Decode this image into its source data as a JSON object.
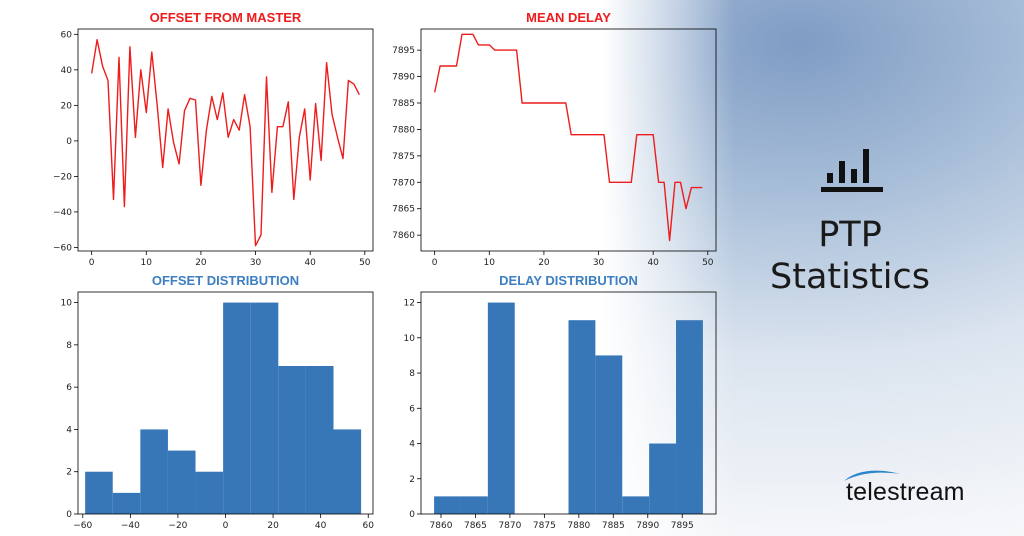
{
  "side_panel": {
    "icon": "bar-chart-icon",
    "title_line1": "PTP",
    "title_line2": "Statistics",
    "logo_text": "telestream"
  },
  "colors": {
    "line": "#ee1c1c",
    "bar": "#3777b7",
    "title_red": "#ee1c1c",
    "title_blue": "#3d7fc0"
  },
  "chart_data": [
    {
      "type": "line",
      "title": "OFFSET FROM MASTER",
      "xlim": [
        -2.5,
        51.5
      ],
      "ylim": [
        -62,
        63
      ],
      "xticks": [
        0,
        10,
        20,
        30,
        40,
        50
      ],
      "yticks": [
        -60,
        -40,
        -20,
        0,
        20,
        40,
        60
      ],
      "x": [
        0,
        1,
        2,
        3,
        4,
        5,
        6,
        7,
        8,
        9,
        10,
        11,
        12,
        13,
        14,
        15,
        16,
        17,
        18,
        19,
        20,
        21,
        22,
        23,
        24,
        25,
        26,
        27,
        28,
        29,
        30,
        31,
        32,
        33,
        34,
        35,
        36,
        37,
        38,
        39,
        40,
        41,
        42,
        43,
        44,
        45,
        46,
        47,
        48,
        49
      ],
      "y": [
        38,
        57,
        42,
        34,
        -33,
        47,
        -37,
        53,
        2,
        40,
        16,
        50,
        20,
        -15,
        18,
        -1,
        -13,
        17,
        24,
        23,
        -25,
        6,
        25,
        12,
        27,
        2,
        12,
        6,
        26,
        8,
        -59,
        -53,
        36,
        -29,
        8,
        8,
        22,
        -33,
        2,
        18,
        -22,
        21,
        -11,
        44,
        15,
        2,
        -10,
        34,
        32,
        26
      ]
    },
    {
      "type": "line",
      "title": "MEAN DELAY",
      "xlim": [
        -2.5,
        51.5
      ],
      "ylim": [
        7857,
        7899
      ],
      "xticks": [
        0,
        10,
        20,
        30,
        40,
        50
      ],
      "yticks": [
        7860,
        7865,
        7870,
        7875,
        7880,
        7885,
        7890,
        7895
      ],
      "x": [
        0,
        1,
        2,
        3,
        4,
        5,
        6,
        7,
        8,
        9,
        10,
        11,
        12,
        13,
        14,
        15,
        16,
        17,
        18,
        19,
        20,
        21,
        22,
        23,
        24,
        25,
        26,
        27,
        28,
        29,
        30,
        31,
        32,
        33,
        34,
        35,
        36,
        37,
        38,
        39,
        40,
        41,
        42,
        43,
        44,
        45,
        46,
        47,
        48,
        49
      ],
      "y": [
        7887,
        7892,
        7892,
        7892,
        7892,
        7898,
        7898,
        7898,
        7896,
        7896,
        7896,
        7895,
        7895,
        7895,
        7895,
        7895,
        7885,
        7885,
        7885,
        7885,
        7885,
        7885,
        7885,
        7885,
        7885,
        7879,
        7879,
        7879,
        7879,
        7879,
        7879,
        7879,
        7870,
        7870,
        7870,
        7870,
        7870,
        7879,
        7879,
        7879,
        7879,
        7870,
        7870,
        7859,
        7870,
        7870,
        7865,
        7869,
        7869,
        7869
      ]
    },
    {
      "type": "bar",
      "title": "OFFSET DISTRIBUTION",
      "xlim": [
        -62,
        62
      ],
      "ylim": [
        0,
        10.5
      ],
      "xticks": [
        -60,
        -40,
        -20,
        0,
        20,
        40,
        60
      ],
      "yticks": [
        0,
        2,
        4,
        6,
        8,
        10
      ],
      "bin_edges": [
        -59,
        -47.4,
        -35.8,
        -24.2,
        -12.6,
        -1,
        10.6,
        22.2,
        33.8,
        45.4,
        57
      ],
      "counts": [
        2,
        1,
        4,
        3,
        2,
        10,
        10,
        7,
        7,
        4
      ]
    },
    {
      "type": "bar",
      "title": "DELAY DISTRIBUTION",
      "xlim": [
        7857.1,
        7899.9
      ],
      "ylim": [
        0,
        12.6
      ],
      "xticks": [
        7860,
        7865,
        7870,
        7875,
        7880,
        7885,
        7890,
        7895
      ],
      "yticks": [
        0,
        2,
        4,
        6,
        8,
        10,
        12
      ],
      "bin_edges": [
        7859,
        7862.9,
        7866.8,
        7870.7,
        7874.6,
        7878.5,
        7882.4,
        7886.3,
        7890.2,
        7894.1,
        7898
      ],
      "counts": [
        1,
        1,
        12,
        0,
        0,
        11,
        9,
        1,
        4,
        11
      ]
    }
  ]
}
